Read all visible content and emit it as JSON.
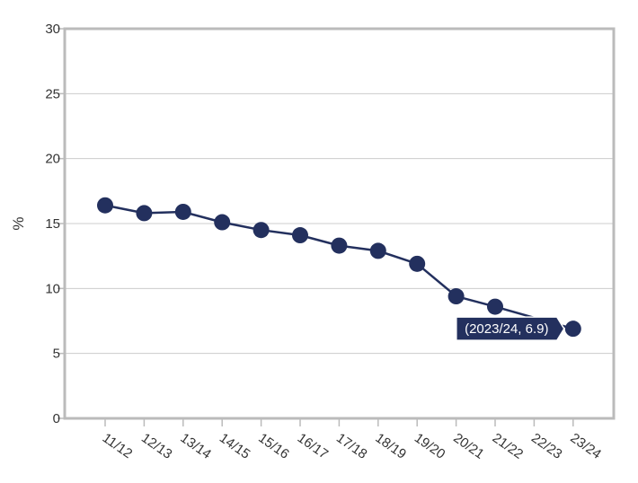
{
  "chart_data": {
    "type": "line",
    "categories": [
      "11/12",
      "12/13",
      "13/14",
      "14/15",
      "15/16",
      "16/17",
      "17/18",
      "18/19",
      "19/20",
      "20/21",
      "21/22",
      "22/23",
      "23/24"
    ],
    "series": [
      {
        "values": [
          16.4,
          15.8,
          15.9,
          15.1,
          14.5,
          14.1,
          13.3,
          12.9,
          11.9,
          9.4,
          8.6,
          null,
          6.9
        ]
      }
    ],
    "ylabel": "%",
    "xlabel": "",
    "ylim": [
      0,
      30
    ],
    "yticks": [
      0,
      5,
      10,
      15,
      20,
      25,
      30
    ],
    "grid": true,
    "colors": {
      "line": "#23305e",
      "grid": "#cccccc",
      "frame": "#bbbbbb",
      "tooltip_bg": "#23305e"
    },
    "tooltip": {
      "text": "(2023/24, 6.9)",
      "index": 12
    }
  }
}
